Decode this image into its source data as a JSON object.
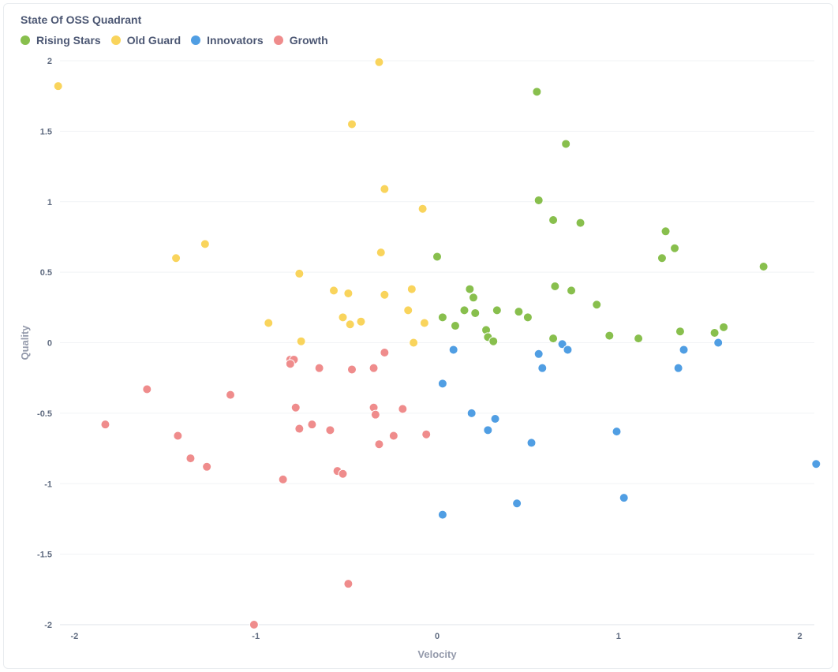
{
  "card": {
    "title": "State Of OSS Quadrant"
  },
  "chart_data": {
    "type": "scatter",
    "title": "State Of OSS Quadrant",
    "xlabel": "Velocity",
    "ylabel": "Quality",
    "xlim": [
      -2.08,
      2.08
    ],
    "ylim": [
      -2,
      2
    ],
    "xticks": [
      "-2",
      "-1",
      "0",
      "1",
      "2"
    ],
    "yticks": [
      "2",
      "1.5",
      "1",
      "0.5",
      "0",
      "-0.5",
      "-1",
      "-1.5",
      "-2"
    ],
    "grid": true,
    "legend_position": "top-left",
    "series": [
      {
        "name": "Rising Stars",
        "color": "#88bf4d",
        "points": [
          [
            0.55,
            1.78
          ],
          [
            0.71,
            1.41
          ],
          [
            0.56,
            1.01
          ],
          [
            0.64,
            0.87
          ],
          [
            0.79,
            0.85
          ],
          [
            1.26,
            0.79
          ],
          [
            1.31,
            0.67
          ],
          [
            1.24,
            0.6
          ],
          [
            1.8,
            0.54
          ],
          [
            0.0,
            0.61
          ],
          [
            0.65,
            0.4
          ],
          [
            0.74,
            0.37
          ],
          [
            0.18,
            0.38
          ],
          [
            0.2,
            0.32
          ],
          [
            0.88,
            0.27
          ],
          [
            0.15,
            0.23
          ],
          [
            0.21,
            0.21
          ],
          [
            0.33,
            0.23
          ],
          [
            0.45,
            0.22
          ],
          [
            0.5,
            0.18
          ],
          [
            0.03,
            0.18
          ],
          [
            0.1,
            0.12
          ],
          [
            0.27,
            0.09
          ],
          [
            0.28,
            0.04
          ],
          [
            0.31,
            0.01
          ],
          [
            0.64,
            0.03
          ],
          [
            0.95,
            0.05
          ],
          [
            1.11,
            0.03
          ],
          [
            1.34,
            0.08
          ],
          [
            1.53,
            0.07
          ],
          [
            1.58,
            0.11
          ]
        ]
      },
      {
        "name": "Old Guard",
        "color": "#f9d45c",
        "points": [
          [
            -0.32,
            1.99
          ],
          [
            -2.09,
            1.82
          ],
          [
            -0.47,
            1.55
          ],
          [
            -0.29,
            1.09
          ],
          [
            -0.08,
            0.95
          ],
          [
            -1.44,
            0.6
          ],
          [
            -1.28,
            0.7
          ],
          [
            -0.31,
            0.64
          ],
          [
            -0.76,
            0.49
          ],
          [
            -0.57,
            0.37
          ],
          [
            -0.49,
            0.35
          ],
          [
            -0.29,
            0.34
          ],
          [
            -0.14,
            0.38
          ],
          [
            -0.16,
            0.23
          ],
          [
            -0.52,
            0.18
          ],
          [
            -0.48,
            0.13
          ],
          [
            -0.42,
            0.15
          ],
          [
            -0.93,
            0.14
          ],
          [
            -0.07,
            0.14
          ],
          [
            -0.75,
            0.01
          ],
          [
            -0.13,
            0.0
          ]
        ]
      },
      {
        "name": "Innovators",
        "color": "#509ee3",
        "points": [
          [
            0.09,
            -0.05
          ],
          [
            0.56,
            -0.08
          ],
          [
            0.69,
            -0.01
          ],
          [
            0.72,
            -0.05
          ],
          [
            1.36,
            -0.05
          ],
          [
            1.55,
            0.0
          ],
          [
            0.58,
            -0.18
          ],
          [
            1.33,
            -0.18
          ],
          [
            0.03,
            -0.29
          ],
          [
            0.19,
            -0.5
          ],
          [
            0.32,
            -0.54
          ],
          [
            0.28,
            -0.62
          ],
          [
            0.52,
            -0.71
          ],
          [
            0.99,
            -0.63
          ],
          [
            2.09,
            -0.86
          ],
          [
            0.44,
            -1.14
          ],
          [
            1.03,
            -1.1
          ],
          [
            0.03,
            -1.22
          ]
        ]
      },
      {
        "name": "Growth",
        "color": "#ef8c8c",
        "points": [
          [
            -0.29,
            -0.07
          ],
          [
            -0.81,
            -0.12
          ],
          [
            -0.79,
            -0.12
          ],
          [
            -0.81,
            -0.15
          ],
          [
            -0.65,
            -0.18
          ],
          [
            -0.47,
            -0.19
          ],
          [
            -0.35,
            -0.18
          ],
          [
            -1.6,
            -0.33
          ],
          [
            -1.14,
            -0.37
          ],
          [
            -0.78,
            -0.46
          ],
          [
            -0.35,
            -0.46
          ],
          [
            -0.34,
            -0.51
          ],
          [
            -0.19,
            -0.47
          ],
          [
            -0.76,
            -0.61
          ],
          [
            -0.69,
            -0.58
          ],
          [
            -0.59,
            -0.62
          ],
          [
            -0.32,
            -0.72
          ],
          [
            -0.24,
            -0.66
          ],
          [
            -0.06,
            -0.65
          ],
          [
            -1.83,
            -0.58
          ],
          [
            -1.43,
            -0.66
          ],
          [
            -1.36,
            -0.82
          ],
          [
            -1.27,
            -0.88
          ],
          [
            -0.85,
            -0.97
          ],
          [
            -0.55,
            -0.91
          ],
          [
            -0.52,
            -0.93
          ],
          [
            -0.49,
            -1.71
          ],
          [
            -1.01,
            -2.0
          ]
        ]
      }
    ]
  }
}
